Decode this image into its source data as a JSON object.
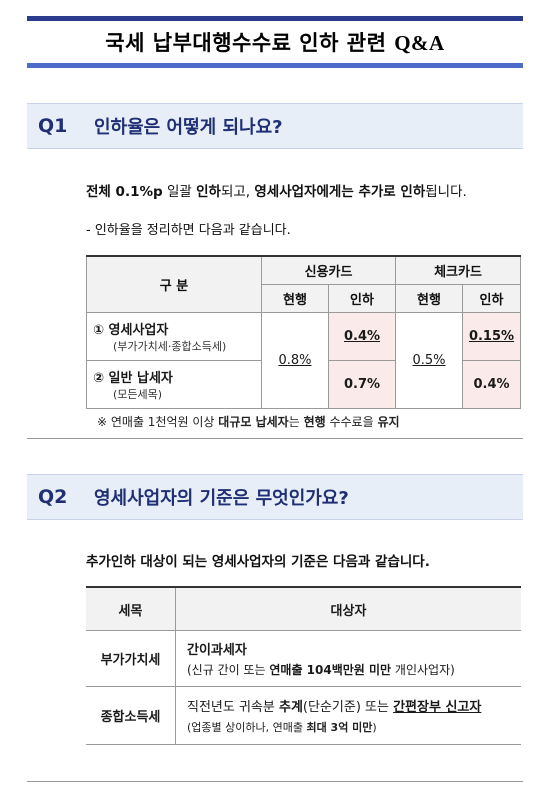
{
  "title": {
    "main": "국세 납부대행수수료 인하 관련",
    "qa": "Q&A"
  },
  "q1": {
    "num": "Q1",
    "title": "인하율은 어떻게 되나요?",
    "line1": {
      "a": "전체 ",
      "b": "0.1%p",
      "c": " 일괄 ",
      "d": "인하",
      "e": "되고, ",
      "f": "영세사업자에게는 ",
      "g": "추가로 인하",
      "h": "됩니다."
    },
    "line2": "- 인하율을 정리하면 다음과 같습니다.",
    "table": {
      "header_category": "구 분",
      "header_credit": "신용카드",
      "header_check": "체크카드",
      "sub_current": "현행",
      "sub_reduced": "인하",
      "rows": [
        {
          "label": "① 영세사업자",
          "sub": "(부가가치세·종합소득세)",
          "credit_reduced": "0.4%",
          "check_reduced": "0.15%"
        },
        {
          "label": "② 일반 납세자",
          "sub": "(모든세목)",
          "credit_reduced": "0.7%",
          "check_reduced": "0.4%"
        }
      ],
      "credit_current": "0.8%",
      "check_current": "0.5%"
    },
    "footnote": {
      "a": "※ 연매출 1천억원 이상 ",
      "b": "대규모 납세자",
      "c": "는 ",
      "d": "현행",
      "e": " 수수료을 ",
      "f": "유지"
    }
  },
  "q2": {
    "num": "Q2",
    "title": "영세사업자의 기준은 무엇인가요?",
    "intro": "추가인하 대상이 되는 영세사업자의 기준은 다음과 같습니다.",
    "table": {
      "header_tax": "세목",
      "header_target": "대상자",
      "rows": [
        {
          "tax": "부가가치세",
          "line1": "간이과세자",
          "line2": {
            "a": "(신규 간이 또는 ",
            "b": "연매출 104백만원 미만",
            "c": " 개인사업자)"
          }
        },
        {
          "tax": "종합소득세",
          "line1": {
            "a": "직전년도 귀속분 ",
            "b": "추계",
            "c": "(단순기준) 또는 ",
            "d": "간편장부 신고자"
          },
          "line2": {
            "a": "(업종별 상이하나, 연매출 ",
            "b": "최대 3억 미만",
            "c": ")"
          }
        }
      ]
    }
  },
  "colors": {
    "accent": "#2b3c8c",
    "q_header_bg": "#e8eef7",
    "highlight": "#fbeaea"
  }
}
